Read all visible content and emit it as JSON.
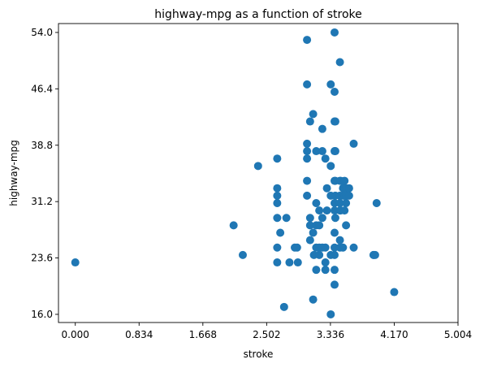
{
  "chart_data": {
    "type": "scatter",
    "title": "highway-mpg as a function of stroke",
    "xlabel": "stroke",
    "ylabel": "highway-mpg",
    "xlim": [
      -0.22,
      5.004
    ],
    "ylim": [
      14.9,
      55.2
    ],
    "xticks": [
      0.0,
      0.834,
      1.668,
      2.502,
      3.336,
      4.17,
      5.004
    ],
    "xtick_labels": [
      "0.000",
      "0.834",
      "1.668",
      "2.502",
      "3.336",
      "4.170",
      "5.004"
    ],
    "yticks": [
      16.0,
      23.6,
      31.2,
      38.8,
      46.4,
      54.0
    ],
    "ytick_labels": [
      "16.0",
      "23.6",
      "31.2",
      "38.8",
      "46.4",
      "54.0"
    ],
    "grid": false,
    "marker_color": "#1f77b4",
    "series": [
      {
        "points": [
          [
            0.0,
            23.0
          ],
          [
            2.07,
            28.0
          ],
          [
            2.19,
            24.0
          ],
          [
            2.39,
            36.0
          ],
          [
            2.64,
            37.0
          ],
          [
            2.64,
            33.0
          ],
          [
            2.64,
            32.0
          ],
          [
            2.64,
            31.0
          ],
          [
            2.64,
            29.0
          ],
          [
            2.64,
            25.0
          ],
          [
            2.64,
            23.0
          ],
          [
            2.68,
            27.0
          ],
          [
            2.76,
            29.0
          ],
          [
            2.8,
            23.0
          ],
          [
            2.87,
            25.0
          ],
          [
            2.9,
            25.0
          ],
          [
            2.91,
            23.0
          ],
          [
            2.73,
            17.0
          ],
          [
            3.03,
            53.0
          ],
          [
            3.03,
            47.0
          ],
          [
            3.03,
            39.0
          ],
          [
            3.03,
            38.0
          ],
          [
            3.03,
            37.0
          ],
          [
            3.03,
            34.0
          ],
          [
            3.03,
            32.0
          ],
          [
            3.07,
            42.0
          ],
          [
            3.07,
            29.0
          ],
          [
            3.07,
            28.0
          ],
          [
            3.07,
            26.0
          ],
          [
            3.11,
            43.0
          ],
          [
            3.11,
            18.0
          ],
          [
            3.11,
            27.0
          ],
          [
            3.12,
            24.0
          ],
          [
            3.15,
            38.0
          ],
          [
            3.15,
            31.0
          ],
          [
            3.15,
            28.0
          ],
          [
            3.15,
            25.0
          ],
          [
            3.15,
            22.0
          ],
          [
            3.19,
            30.0
          ],
          [
            3.19,
            28.0
          ],
          [
            3.19,
            25.0
          ],
          [
            3.19,
            24.0
          ],
          [
            3.23,
            41.0
          ],
          [
            3.23,
            38.0
          ],
          [
            3.23,
            29.0
          ],
          [
            3.23,
            25.0
          ],
          [
            3.27,
            37.0
          ],
          [
            3.27,
            25.0
          ],
          [
            3.27,
            22.0
          ],
          [
            3.27,
            23.0
          ],
          [
            3.29,
            33.0
          ],
          [
            3.29,
            30.0
          ],
          [
            3.34,
            36.0
          ],
          [
            3.34,
            32.0
          ],
          [
            3.34,
            24.0
          ],
          [
            3.34,
            47.0
          ],
          [
            3.34,
            16.0
          ],
          [
            3.39,
            54.0
          ],
          [
            3.39,
            46.0
          ],
          [
            3.39,
            42.0
          ],
          [
            3.39,
            38.0
          ],
          [
            3.39,
            34.0
          ],
          [
            3.39,
            31.0
          ],
          [
            3.39,
            30.0
          ],
          [
            3.39,
            27.0
          ],
          [
            3.39,
            25.0
          ],
          [
            3.39,
            24.0
          ],
          [
            3.39,
            22.0
          ],
          [
            3.39,
            20.0
          ],
          [
            3.4,
            42.0
          ],
          [
            3.4,
            38.0
          ],
          [
            3.4,
            34.0
          ],
          [
            3.4,
            32.0
          ],
          [
            3.4,
            29.0
          ],
          [
            3.46,
            50.0
          ],
          [
            3.46,
            34.0
          ],
          [
            3.46,
            32.0
          ],
          [
            3.46,
            31.0
          ],
          [
            3.46,
            30.0
          ],
          [
            3.46,
            25.0
          ],
          [
            3.46,
            26.0
          ],
          [
            3.47,
            34.0
          ],
          [
            3.47,
            30.0
          ],
          [
            3.5,
            33.0
          ],
          [
            3.5,
            32.0
          ],
          [
            3.5,
            25.0
          ],
          [
            3.52,
            34.0
          ],
          [
            3.52,
            32.0
          ],
          [
            3.52,
            30.0
          ],
          [
            3.54,
            33.0
          ],
          [
            3.54,
            32.0
          ],
          [
            3.54,
            31.0
          ],
          [
            3.54,
            28.0
          ],
          [
            3.58,
            33.0
          ],
          [
            3.58,
            32.0
          ],
          [
            3.64,
            39.0
          ],
          [
            3.64,
            25.0
          ],
          [
            3.9,
            24.0
          ],
          [
            3.9,
            24.0
          ],
          [
            3.92,
            24.0
          ],
          [
            3.94,
            31.0
          ],
          [
            4.17,
            19.0
          ]
        ]
      }
    ]
  }
}
